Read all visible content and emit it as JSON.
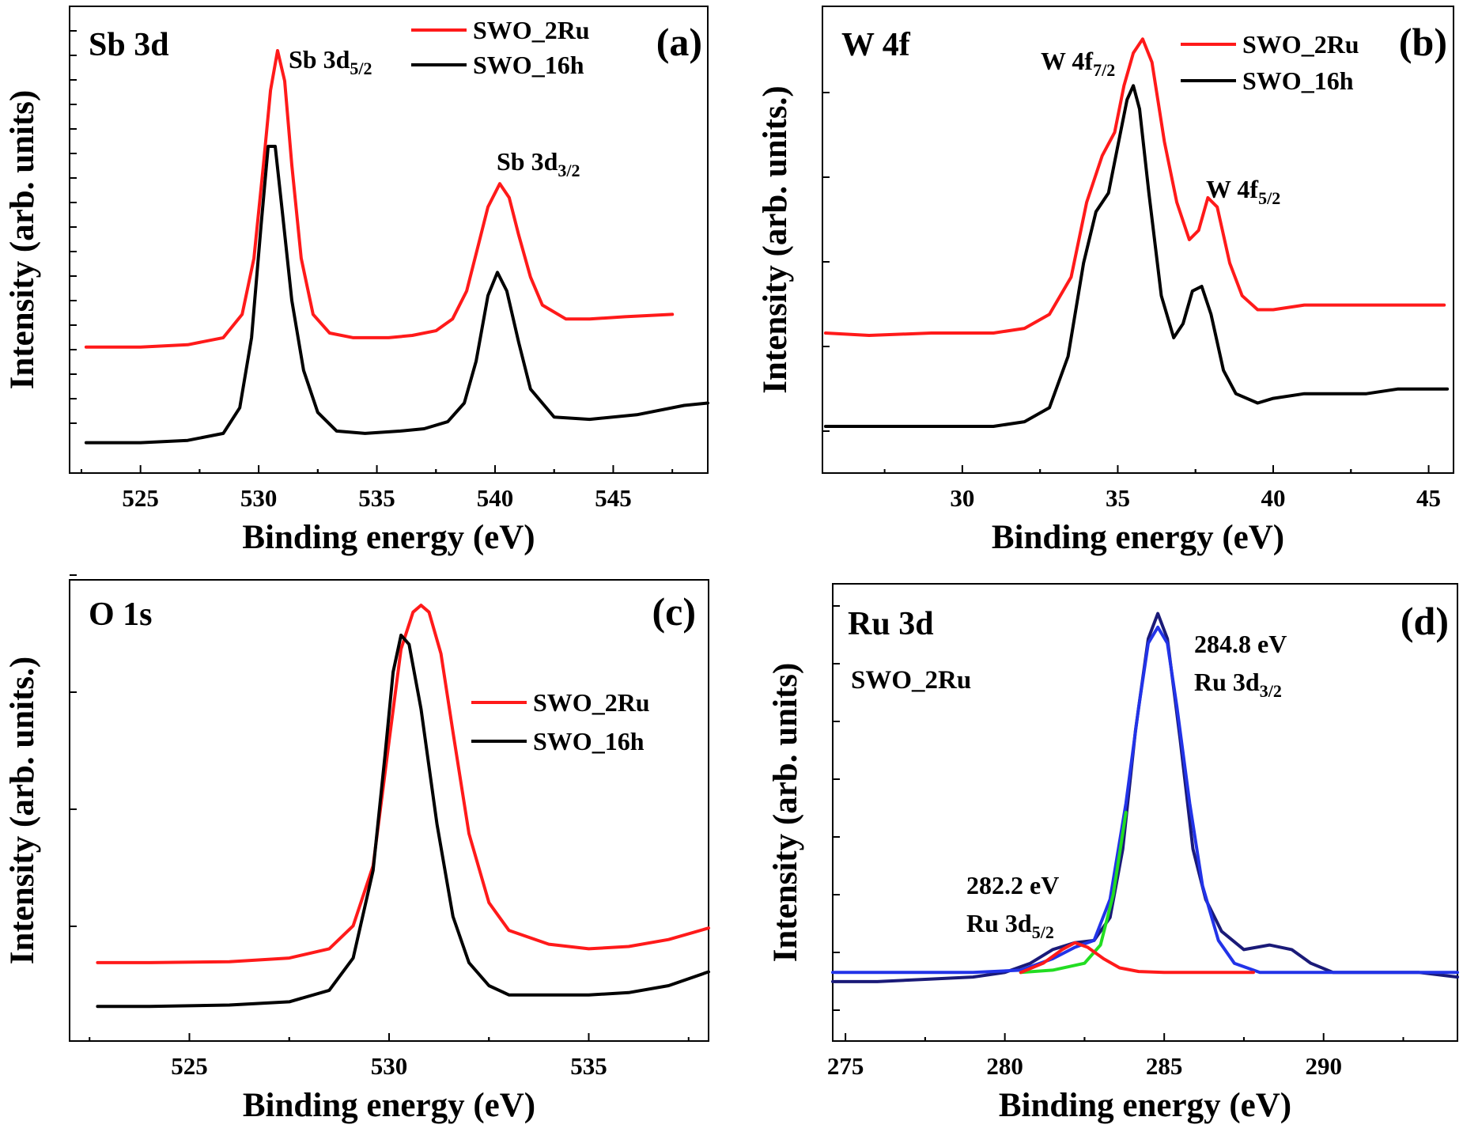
{
  "colors": {
    "red": "#ff1a1a",
    "black": "#000000",
    "navy": "#1a1a78",
    "blue": "#2233e8",
    "green": "#22dd22"
  },
  "chart_data": [
    {
      "type": "line",
      "panel": "(a)",
      "element": "Sb 3d",
      "xlabel": "Binding energy (eV)",
      "ylabel": "Intensity (arb. units)",
      "xlim": [
        522,
        549
      ],
      "ylim": [
        0,
        1
      ],
      "xticks": [
        "525",
        "530",
        "535",
        "540",
        "545"
      ],
      "legend": {
        "position": "top-right",
        "entries": [
          "SWO_2Ru",
          "SWO_16h"
        ]
      },
      "annotations": [
        {
          "text": "Sb 3d",
          "sub": "5/2",
          "x": 530.8
        },
        {
          "text": "Sb 3d",
          "sub": "3/2",
          "x": 540.2
        }
      ],
      "series": [
        {
          "name": "SWO_2Ru",
          "color": "#ff1a1a",
          "x": [
            522.7,
            525,
            527,
            528.5,
            529.3,
            529.8,
            530.2,
            530.5,
            530.8,
            531.1,
            531.4,
            531.8,
            532.3,
            533,
            534,
            535.5,
            536.5,
            537.5,
            538.2,
            538.8,
            539.3,
            539.7,
            540.2,
            540.6,
            541,
            541.5,
            542,
            543,
            544,
            545.5,
            547.5
          ],
          "y": [
            0.27,
            0.27,
            0.275,
            0.29,
            0.34,
            0.46,
            0.66,
            0.82,
            0.905,
            0.84,
            0.66,
            0.46,
            0.34,
            0.3,
            0.29,
            0.29,
            0.295,
            0.305,
            0.33,
            0.39,
            0.49,
            0.57,
            0.62,
            0.59,
            0.51,
            0.42,
            0.36,
            0.33,
            0.33,
            0.335,
            0.34
          ]
        },
        {
          "name": "SWO_16h",
          "color": "#000000",
          "x": [
            522.7,
            525,
            527,
            528.5,
            529.2,
            529.7,
            530.1,
            530.4,
            530.7,
            531,
            531.4,
            531.9,
            532.5,
            533.3,
            534.5,
            536,
            537,
            538,
            538.7,
            539.2,
            539.7,
            540.1,
            540.5,
            541,
            541.5,
            542.5,
            544,
            546,
            548,
            549
          ],
          "y": [
            0.065,
            0.065,
            0.07,
            0.085,
            0.14,
            0.29,
            0.53,
            0.7,
            0.7,
            0.56,
            0.37,
            0.22,
            0.13,
            0.09,
            0.085,
            0.09,
            0.095,
            0.11,
            0.15,
            0.24,
            0.38,
            0.43,
            0.39,
            0.28,
            0.18,
            0.12,
            0.115,
            0.125,
            0.145,
            0.15
          ]
        }
      ]
    },
    {
      "type": "line",
      "panel": "(b)",
      "element": "W 4f",
      "xlabel": "Binding energy (eV)",
      "ylabel": "Intensity (arb. units.)",
      "xlim": [
        25.5,
        45.8
      ],
      "ylim": [
        0,
        1
      ],
      "xticks": [
        "30",
        "35",
        "40",
        "45"
      ],
      "legend": {
        "position": "top-right",
        "entries": [
          "SWO_2Ru",
          "SWO_16h"
        ]
      },
      "annotations": [
        {
          "text": "W 4f",
          "sub": "7/2",
          "x": 35.8
        },
        {
          "text": "W 4f",
          "sub": "5/2",
          "x": 38.0
        }
      ],
      "series": [
        {
          "name": "SWO_2Ru",
          "color": "#ff1a1a",
          "x": [
            25.6,
            27,
            29,
            31,
            32,
            32.8,
            33.5,
            34,
            34.5,
            34.9,
            35.2,
            35.5,
            35.8,
            36.1,
            36.5,
            36.9,
            37.3,
            37.6,
            37.9,
            38.2,
            38.6,
            39,
            39.5,
            40,
            41,
            42,
            43,
            44,
            45.5
          ],
          "y": [
            0.3,
            0.295,
            0.3,
            0.3,
            0.31,
            0.34,
            0.42,
            0.58,
            0.68,
            0.73,
            0.83,
            0.9,
            0.93,
            0.88,
            0.71,
            0.58,
            0.5,
            0.52,
            0.59,
            0.57,
            0.45,
            0.38,
            0.35,
            0.35,
            0.36,
            0.36,
            0.36,
            0.36,
            0.36
          ]
        },
        {
          "name": "SWO_16h",
          "color": "#000000",
          "x": [
            25.6,
            27,
            29,
            31,
            32,
            32.8,
            33.4,
            33.9,
            34.3,
            34.7,
            35,
            35.3,
            35.5,
            35.7,
            36,
            36.4,
            36.8,
            37.1,
            37.4,
            37.7,
            38,
            38.4,
            38.8,
            39.5,
            40,
            41,
            42,
            43,
            44,
            45.6
          ],
          "y": [
            0.1,
            0.1,
            0.1,
            0.1,
            0.11,
            0.14,
            0.25,
            0.45,
            0.56,
            0.6,
            0.7,
            0.8,
            0.83,
            0.78,
            0.6,
            0.38,
            0.29,
            0.32,
            0.39,
            0.4,
            0.34,
            0.22,
            0.17,
            0.15,
            0.16,
            0.17,
            0.17,
            0.17,
            0.18,
            0.18
          ]
        }
      ]
    },
    {
      "type": "line",
      "panel": "(c)",
      "element": "O 1s",
      "xlabel": "Binding energy (eV)",
      "ylabel": "Intensity (arb. units.)",
      "xlim": [
        522,
        538
      ],
      "ylim": [
        0,
        1
      ],
      "xticks": [
        "525",
        "530",
        "535"
      ],
      "legend": {
        "position": "center-right",
        "entries": [
          "SWO_2Ru",
          "SWO_16h"
        ]
      },
      "annotations": [],
      "series": [
        {
          "name": "SWO_2Ru",
          "color": "#ff1a1a",
          "x": [
            522.7,
            524,
            526,
            527.5,
            528.5,
            529.1,
            529.6,
            530,
            530.3,
            530.6,
            530.8,
            531,
            531.3,
            531.6,
            532,
            532.5,
            533,
            534,
            535,
            536,
            537,
            538
          ],
          "y": [
            0.17,
            0.17,
            0.172,
            0.18,
            0.2,
            0.25,
            0.38,
            0.65,
            0.85,
            0.93,
            0.945,
            0.93,
            0.84,
            0.67,
            0.45,
            0.3,
            0.24,
            0.21,
            0.2,
            0.205,
            0.22,
            0.245
          ]
        },
        {
          "name": "SWO_16h",
          "color": "#000000",
          "x": [
            522.7,
            524,
            526,
            527.5,
            528.5,
            529.1,
            529.6,
            529.9,
            530.1,
            530.3,
            530.5,
            530.8,
            531.2,
            531.6,
            532,
            532.5,
            533,
            534,
            535,
            536,
            537,
            538
          ],
          "y": [
            0.075,
            0.075,
            0.078,
            0.085,
            0.11,
            0.18,
            0.37,
            0.62,
            0.8,
            0.88,
            0.86,
            0.72,
            0.47,
            0.27,
            0.17,
            0.12,
            0.1,
            0.1,
            0.1,
            0.105,
            0.12,
            0.15
          ]
        }
      ]
    },
    {
      "type": "line",
      "panel": "(d)",
      "element": "Ru 3d",
      "sample": "SWO_2Ru",
      "xlabel": "Binding energy (eV)",
      "ylabel": "Intensity (arb. units)",
      "xlim": [
        274.6,
        294.2
      ],
      "ylim": [
        0,
        1
      ],
      "xticks": [
        "275",
        "280",
        "285",
        "290"
      ],
      "annotations": [
        {
          "line1": "284.8 eV",
          "text": "Ru 3d",
          "sub": "3/2",
          "x": 284.8
        },
        {
          "line1": "282.2 eV",
          "text": "Ru 3d",
          "sub": "5/2",
          "x": 282.2
        }
      ],
      "series": [
        {
          "name": "",
          "color": "#1a1a78",
          "x": [
            274.6,
            276,
            277.5,
            279,
            280,
            280.8,
            281.5,
            282.2,
            282.8,
            283.3,
            283.7,
            284.1,
            284.5,
            284.8,
            285.1,
            285.5,
            285.9,
            286.3,
            286.8,
            287.5,
            288.3,
            289,
            289.6,
            290.3,
            291.5,
            293,
            294.2
          ],
          "y": [
            0.13,
            0.13,
            0.135,
            0.14,
            0.15,
            0.17,
            0.2,
            0.215,
            0.22,
            0.27,
            0.42,
            0.68,
            0.88,
            0.935,
            0.88,
            0.66,
            0.42,
            0.31,
            0.24,
            0.2,
            0.21,
            0.2,
            0.17,
            0.15,
            0.15,
            0.15,
            0.14
          ]
        },
        {
          "name": "",
          "color": "#2233e8",
          "x": [
            274.6,
            279,
            280.5,
            281.5,
            282.2,
            282.8,
            283.3,
            283.8,
            284.2,
            284.5,
            284.8,
            285.1,
            285.4,
            285.8,
            286.2,
            286.7,
            287.2,
            288,
            290,
            294.2
          ],
          "y": [
            0.15,
            0.15,
            0.155,
            0.18,
            0.205,
            0.22,
            0.31,
            0.52,
            0.73,
            0.87,
            0.905,
            0.87,
            0.73,
            0.52,
            0.34,
            0.22,
            0.17,
            0.15,
            0.15,
            0.15
          ]
        },
        {
          "name": "",
          "color": "#22dd22",
          "x": [
            280.5,
            281.5,
            282.5,
            283,
            283.4,
            283.8
          ],
          "y": [
            0.15,
            0.155,
            0.17,
            0.21,
            0.32,
            0.5
          ]
        },
        {
          "name": "",
          "color": "#ff1a1a",
          "x": [
            280.5,
            281.2,
            281.8,
            282.2,
            282.6,
            283.1,
            283.6,
            284.2,
            285,
            287.8
          ],
          "y": [
            0.15,
            0.17,
            0.2,
            0.215,
            0.205,
            0.18,
            0.16,
            0.152,
            0.15,
            0.15
          ]
        }
      ]
    }
  ]
}
